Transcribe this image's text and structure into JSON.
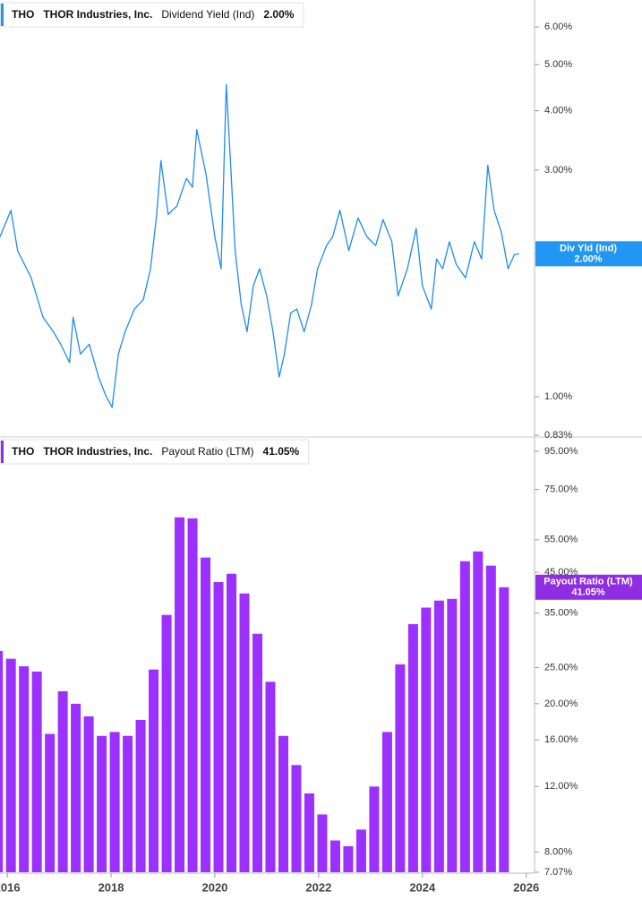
{
  "chart_data": [
    {
      "type": "line",
      "header": {
        "ticker": "THO",
        "company": "THOR Industries, Inc.",
        "metric": "Dividend Yield (Ind)",
        "latest": "2.00%"
      },
      "flag_label": "Div Yld (Ind)",
      "color": "#1f8ceb",
      "flag_color": "#2196f3",
      "log_scale": true,
      "xlim": [
        2015.86,
        2026.16
      ],
      "ylim": [
        0.83,
        6.84
      ],
      "yticks": [
        {
          "value": 6,
          "label": "6.00%"
        },
        {
          "value": 5,
          "label": "5.00%"
        },
        {
          "value": 4,
          "label": "4.00%"
        },
        {
          "value": 3,
          "label": "3.00%"
        },
        {
          "value": 2,
          "label": "2.00%"
        },
        {
          "value": 1,
          "label": "1.00%"
        },
        {
          "value": 0.83,
          "label": "0.83%"
        }
      ],
      "x": [
        2015.86,
        2016.07,
        2016.2,
        2016.46,
        2016.69,
        2016.89,
        2017.03,
        2017.2,
        2017.27,
        2017.41,
        2017.58,
        2017.76,
        2017.89,
        2018.02,
        2018.14,
        2018.27,
        2018.45,
        2018.62,
        2018.76,
        2018.88,
        2018.96,
        2019.1,
        2019.27,
        2019.45,
        2019.57,
        2019.65,
        2019.83,
        2020.0,
        2020.12,
        2020.22,
        2020.31,
        2020.39,
        2020.51,
        2020.62,
        2020.74,
        2020.86,
        2021.0,
        2021.12,
        2021.24,
        2021.34,
        2021.46,
        2021.58,
        2021.72,
        2021.86,
        2021.98,
        2022.15,
        2022.27,
        2022.41,
        2022.58,
        2022.76,
        2022.93,
        2023.1,
        2023.24,
        2023.41,
        2023.53,
        2023.71,
        2023.88,
        2024.0,
        2024.17,
        2024.27,
        2024.39,
        2024.52,
        2024.65,
        2024.83,
        2025.0,
        2025.14,
        2025.26,
        2025.38,
        2025.52,
        2025.65,
        2025.77,
        2025.86
      ],
      "values": [
        2.17,
        2.47,
        2.03,
        1.78,
        1.47,
        1.37,
        1.29,
        1.18,
        1.47,
        1.23,
        1.29,
        1.1,
        1.01,
        0.95,
        1.23,
        1.37,
        1.53,
        1.6,
        1.86,
        2.42,
        3.14,
        2.42,
        2.52,
        2.88,
        2.76,
        3.65,
        2.94,
        2.17,
        1.86,
        4.54,
        3.0,
        2.03,
        1.56,
        1.37,
        1.71,
        1.86,
        1.63,
        1.37,
        1.1,
        1.23,
        1.5,
        1.53,
        1.37,
        1.56,
        1.86,
        2.08,
        2.17,
        2.47,
        2.03,
        2.38,
        2.17,
        2.08,
        2.36,
        2.12,
        1.63,
        1.86,
        2.26,
        1.71,
        1.53,
        1.95,
        1.86,
        2.12,
        1.9,
        1.78,
        2.12,
        1.95,
        3.07,
        2.47,
        2.22,
        1.86,
        1.99,
        2.0
      ]
    },
    {
      "type": "bar",
      "header": {
        "ticker": "THO",
        "company": "THOR Industries, Inc.",
        "metric": "Payout Ratio (LTM)",
        "latest": "41.05%"
      },
      "flag_label": "Payout Ratio (LTM)",
      "color": "#9b30ff",
      "flag_color": "#8e2de2",
      "log_scale": true,
      "xlim": [
        2015.86,
        2026.16
      ],
      "xticks": [
        2016,
        2018,
        2020,
        2022,
        2024,
        2026
      ],
      "ylim": [
        7.07,
        102.6
      ],
      "yticks": [
        {
          "value": 95,
          "label": "95.00%"
        },
        {
          "value": 75,
          "label": "75.00%"
        },
        {
          "value": 55,
          "label": "55.00%"
        },
        {
          "value": 45,
          "label": "45.00%"
        },
        {
          "value": 35,
          "label": "35.00%"
        },
        {
          "value": 25,
          "label": "25.00%"
        },
        {
          "value": 20,
          "label": "20.00%"
        },
        {
          "value": 16,
          "label": "16.00%"
        },
        {
          "value": 12,
          "label": "12.00%"
        },
        {
          "value": 8,
          "label": "8.00%"
        },
        {
          "value": 7.07,
          "label": "7.07%"
        }
      ],
      "x": [
        2015.82,
        2016.07,
        2016.32,
        2016.57,
        2016.82,
        2017.07,
        2017.32,
        2017.57,
        2017.82,
        2018.07,
        2018.32,
        2018.57,
        2018.82,
        2019.07,
        2019.32,
        2019.57,
        2019.82,
        2020.07,
        2020.32,
        2020.57,
        2020.82,
        2021.07,
        2021.32,
        2021.57,
        2021.82,
        2022.07,
        2022.32,
        2022.57,
        2022.82,
        2023.07,
        2023.32,
        2023.57,
        2023.82,
        2024.07,
        2024.32,
        2024.57,
        2024.82,
        2025.07,
        2025.32,
        2025.57
      ],
      "values": [
        27.7,
        26.4,
        25.2,
        24.4,
        16.6,
        21.6,
        20.0,
        18.5,
        16.4,
        16.8,
        16.4,
        18.1,
        24.7,
        34.6,
        63.2,
        62.8,
        49.3,
        42.4,
        44.6,
        39.5,
        30.8,
        22.9,
        16.4,
        13.7,
        11.5,
        10.1,
        8.6,
        8.3,
        9.2,
        12.0,
        16.8,
        25.5,
        32.7,
        36.2,
        37.8,
        38.2,
        48.2,
        51.2,
        46.9,
        41.05
      ]
    }
  ]
}
